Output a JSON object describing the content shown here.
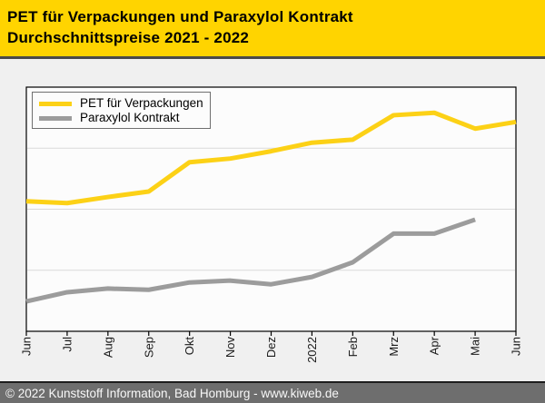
{
  "header": {
    "title_line1": "PET für Verpackungen und Paraxylol Kontrakt",
    "title_line2": "Durchschnittspreise 2021 - 2022",
    "bg_color": "#ffd400"
  },
  "legend": {
    "items": [
      {
        "label": "PET für Verpackungen",
        "color": "#fcd116"
      },
      {
        "label": "Paraxylol Kontrakt",
        "color": "#9c9c9c"
      }
    ]
  },
  "chart_data": {
    "type": "line",
    "title": "PET für Verpackungen und Paraxylol Kontrakt Durchschnittspreise 2021 - 2022",
    "xlabel": "",
    "ylabel": "",
    "x_labels": [
      "Jun",
      "Jul",
      "Aug",
      "Sep",
      "Okt",
      "Nov",
      "Dez",
      "2022",
      "Feb",
      "Mrz",
      "Apr",
      "Mai",
      "Jun"
    ],
    "series": [
      {
        "name": "PET für Verpackungen",
        "color": "#fcd116",
        "values": [
          2.13,
          2.1,
          2.2,
          2.29,
          2.77,
          2.83,
          2.95,
          3.09,
          3.14,
          3.54,
          3.58,
          3.32,
          3.43
        ]
      },
      {
        "name": "Paraxylol Kontrakt",
        "color": "#9c9c9c",
        "values": [
          0.49,
          0.64,
          0.7,
          0.68,
          0.8,
          0.83,
          0.77,
          0.89,
          1.13,
          1.6,
          1.6,
          1.83,
          null
        ]
      }
    ],
    "ylim": [
      0,
      4
    ],
    "gridlines_y": [
      1,
      2,
      3
    ],
    "grid": true,
    "legend_position": "top-left",
    "y_axis_labels_visible": false,
    "value_unit_note": "y axis unlabeled; values expressed in gridline intervals (plot divided into 4 equal bands)"
  },
  "footer": {
    "text": "© 2022 Kunststoff Information, Bad Homburg - www.kiweb.de"
  },
  "colors": {
    "page_bg": "#f0f0f0",
    "plot_bg": "#fcfcfc",
    "plot_border": "#000000",
    "gridline": "#d9d9d9",
    "footer_bg": "#6e6e6e",
    "tick_label": "#1a1a1a"
  }
}
